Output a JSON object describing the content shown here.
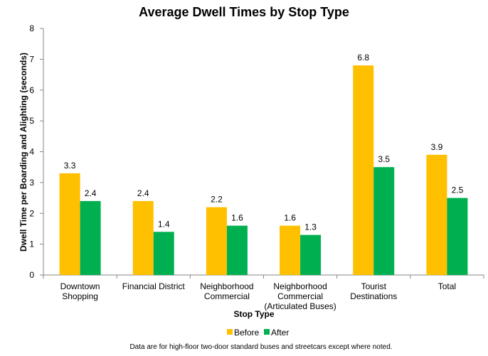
{
  "chart_data": {
    "type": "bar",
    "title": "Average Dwell Times by Stop Type",
    "xlabel": "Stop Type",
    "ylabel": "Dwell Time per Boarding and Alighting (seconds)",
    "ylim": [
      0,
      8
    ],
    "yticks": [
      0,
      1,
      2,
      3,
      4,
      5,
      6,
      7,
      8
    ],
    "grid": false,
    "legend_position": "bottom",
    "categories": [
      [
        "Downtown",
        "Shopping"
      ],
      [
        "Financial District"
      ],
      [
        "Neighborhood",
        "Commercial"
      ],
      [
        "Neighborhood",
        "Commercial",
        "(Articulated Buses)"
      ],
      [
        "Tourist",
        "Destinations"
      ],
      [
        "Total"
      ]
    ],
    "series": [
      {
        "name": "Before",
        "color": "#FFC000",
        "values": [
          3.3,
          2.4,
          2.2,
          1.6,
          6.8,
          3.9
        ]
      },
      {
        "name": "After",
        "color": "#00B050",
        "values": [
          2.4,
          1.4,
          1.6,
          1.3,
          3.5,
          2.5
        ]
      }
    ],
    "data_labels": true,
    "footnote": "Data are for high-floor two-door standard buses and streetcars except where noted."
  }
}
